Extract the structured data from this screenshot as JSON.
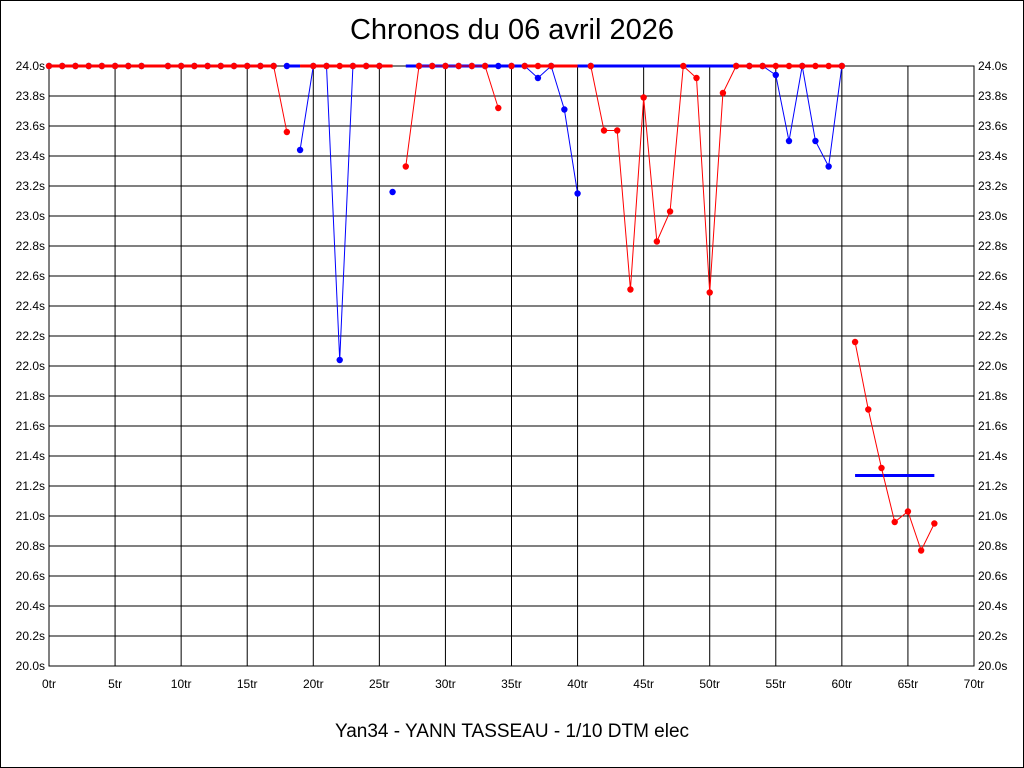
{
  "chart_data": {
    "type": "line",
    "title": "Chronos du 06 avril 2026",
    "subtitle": "Yan34 - YANN TASSEAU - 1/10 DTM elec",
    "xlabel": "",
    "ylabel": "",
    "xlim": [
      0,
      70
    ],
    "ylim": [
      20.0,
      24.0
    ],
    "grid": true,
    "legend": "none",
    "x_ticks": [
      "0tr",
      "5tr",
      "10tr",
      "15tr",
      "20tr",
      "25tr",
      "30tr",
      "35tr",
      "40tr",
      "45tr",
      "50tr",
      "55tr",
      "60tr",
      "65tr",
      "70tr"
    ],
    "y_ticks": [
      "20.0s",
      "20.2s",
      "20.4s",
      "20.6s",
      "20.8s",
      "21.0s",
      "21.2s",
      "21.4s",
      "21.6s",
      "21.8s",
      "22.0s",
      "22.2s",
      "22.4s",
      "22.6s",
      "22.8s",
      "23.0s",
      "23.2s",
      "23.4s",
      "23.6s",
      "23.8s",
      "24.0s"
    ],
    "series": [
      {
        "color": "#0000ff",
        "points": [
          [
            0,
            24.0
          ],
          [
            1,
            24.0
          ],
          [
            2,
            24.0
          ],
          [
            3,
            24.0
          ],
          [
            4,
            24.0
          ],
          [
            5,
            24.0
          ],
          [
            6,
            24.0
          ],
          [
            7,
            24.0
          ],
          [
            9,
            24.0
          ],
          [
            10,
            24.0
          ],
          [
            11,
            24.0
          ],
          [
            12,
            24.0
          ],
          [
            13,
            24.0
          ],
          [
            14,
            24.0
          ],
          [
            15,
            24.0
          ],
          [
            16,
            24.0
          ],
          [
            17,
            24.0
          ],
          [
            18,
            24.0
          ],
          [
            19,
            23.44
          ],
          [
            20,
            24.0
          ],
          [
            21,
            24.0
          ],
          [
            22,
            22.04
          ],
          [
            23,
            24.0
          ],
          [
            24,
            24.0
          ],
          [
            25,
            24.0
          ],
          [
            26,
            23.16
          ],
          [
            28,
            24.0
          ],
          [
            29,
            24.0
          ],
          [
            30,
            24.0
          ],
          [
            31,
            24.0
          ],
          [
            32,
            24.0
          ],
          [
            33,
            24.0
          ],
          [
            34,
            24.0
          ],
          [
            35,
            24.0
          ],
          [
            36,
            24.0
          ],
          [
            37,
            23.92
          ],
          [
            38,
            24.0
          ],
          [
            39,
            23.71
          ],
          [
            40,
            23.15
          ],
          [
            41,
            24.0
          ],
          [
            52,
            24.0
          ],
          [
            53,
            24.0
          ],
          [
            54,
            24.0
          ],
          [
            55,
            23.94
          ],
          [
            56,
            23.5
          ],
          [
            57,
            24.0
          ],
          [
            58,
            23.5
          ],
          [
            59,
            23.33
          ],
          [
            60,
            24.0
          ]
        ],
        "segments": [
          [
            1,
            7
          ],
          [
            9,
            17
          ],
          [
            19,
            25
          ],
          [
            28,
            33
          ],
          [
            35,
            40
          ],
          [
            53,
            60
          ]
        ]
      },
      {
        "color": "#ff0000",
        "points": [
          [
            0,
            24.0
          ],
          [
            1,
            24.0
          ],
          [
            2,
            24.0
          ],
          [
            3,
            24.0
          ],
          [
            4,
            24.0
          ],
          [
            5,
            24.0
          ],
          [
            6,
            24.0
          ],
          [
            7,
            24.0
          ],
          [
            9,
            24.0
          ],
          [
            10,
            24.0
          ],
          [
            11,
            24.0
          ],
          [
            12,
            24.0
          ],
          [
            13,
            24.0
          ],
          [
            14,
            24.0
          ],
          [
            15,
            24.0
          ],
          [
            16,
            24.0
          ],
          [
            17,
            24.0
          ],
          [
            18,
            23.56
          ],
          [
            20,
            24.0
          ],
          [
            21,
            24.0
          ],
          [
            22,
            24.0
          ],
          [
            23,
            24.0
          ],
          [
            24,
            24.0
          ],
          [
            25,
            24.0
          ],
          [
            27,
            23.33
          ],
          [
            28,
            24.0
          ],
          [
            29,
            24.0
          ],
          [
            30,
            24.0
          ],
          [
            31,
            24.0
          ],
          [
            32,
            24.0
          ],
          [
            33,
            24.0
          ],
          [
            34,
            23.72
          ],
          [
            35,
            24.0
          ],
          [
            36,
            24.0
          ],
          [
            37,
            24.0
          ],
          [
            38,
            24.0
          ],
          [
            41,
            24.0
          ],
          [
            42,
            23.57
          ],
          [
            43,
            23.57
          ],
          [
            44,
            22.51
          ],
          [
            45,
            23.79
          ],
          [
            46,
            22.83
          ],
          [
            47,
            23.03
          ],
          [
            48,
            24.0
          ],
          [
            49,
            23.92
          ],
          [
            50,
            22.49
          ],
          [
            51,
            23.82
          ],
          [
            52,
            24.0
          ],
          [
            53,
            24.0
          ],
          [
            54,
            24.0
          ],
          [
            55,
            24.0
          ],
          [
            56,
            24.0
          ],
          [
            57,
            24.0
          ],
          [
            58,
            24.0
          ],
          [
            59,
            24.0
          ],
          [
            60,
            24.0
          ],
          [
            61,
            22.16
          ],
          [
            62,
            21.71
          ],
          [
            63,
            21.32
          ],
          [
            64,
            20.96
          ],
          [
            65,
            21.03
          ],
          [
            66,
            20.77
          ],
          [
            67,
            20.95
          ]
        ],
        "segments": [
          [
            1,
            7
          ],
          [
            9,
            18
          ],
          [
            20,
            25
          ],
          [
            27,
            34
          ],
          [
            41,
            52
          ],
          [
            53,
            60
          ],
          [
            61,
            67
          ]
        ]
      }
    ],
    "average_lines": [
      {
        "color": "#0000ff",
        "y": 24.0,
        "x": [
          18.0,
          19.0
        ]
      },
      {
        "color": "#0000ff",
        "y": 24.0,
        "x": [
          27.0,
          41.0
        ]
      },
      {
        "color": "#0000ff",
        "y": 24.0,
        "x": [
          41.0,
          52.0
        ]
      },
      {
        "color": "#0000ff",
        "y": 21.27,
        "x": [
          61.0,
          67.0
        ]
      },
      {
        "color": "#ff0000",
        "y": 24.0,
        "x": [
          0.0,
          17.0
        ]
      },
      {
        "color": "#ff0000",
        "y": 24.0,
        "x": [
          19.0,
          26.0
        ]
      },
      {
        "color": "#ff0000",
        "y": 24.0,
        "x": [
          36.0,
          40.0
        ]
      },
      {
        "color": "#ff0000",
        "y": 24.0,
        "x": [
          52.0,
          60.0
        ]
      }
    ]
  }
}
